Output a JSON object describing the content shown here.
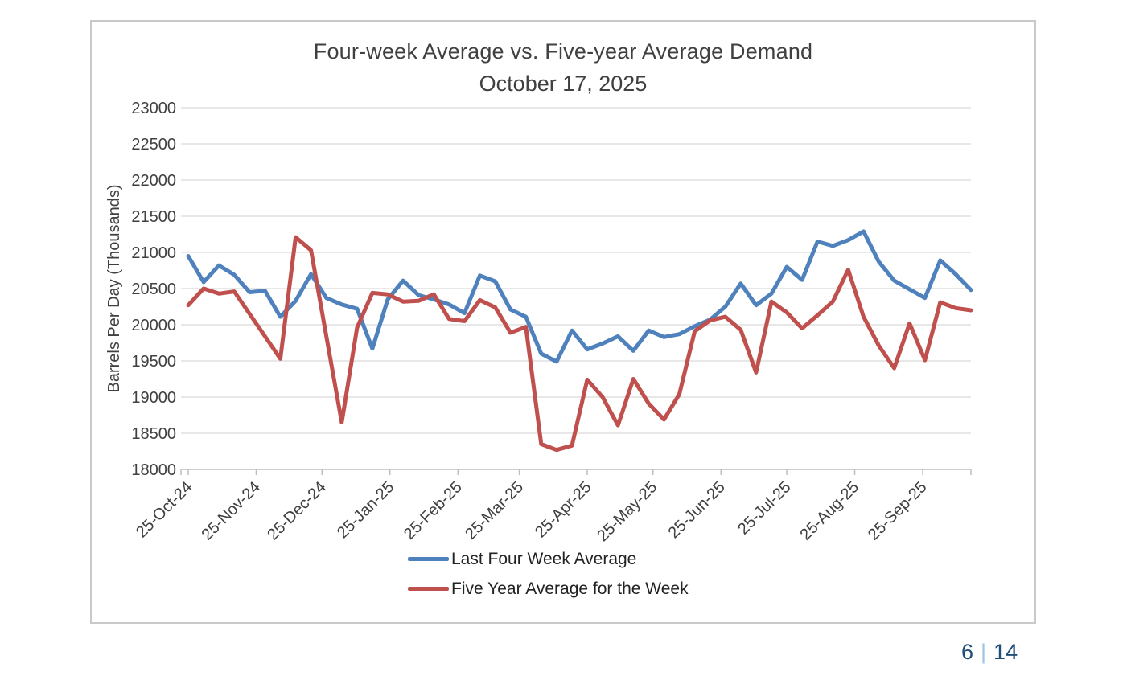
{
  "page": {
    "page_number_current": "6",
    "page_number_separator": "|",
    "page_number_total": "14"
  },
  "chart_data": {
    "type": "line",
    "title": "Four-week Average vs. Five-year Average Demand",
    "subtitle": "October 17, 2025",
    "ylabel": "Barrels Per Day (Thousands)",
    "xlabel": "",
    "ylim": [
      18000,
      23000
    ],
    "y_tick_step": 500,
    "y_tick_labels": [
      "23000",
      "22500",
      "22000",
      "21500",
      "21000",
      "20500",
      "20000",
      "19500",
      "19000",
      "18500",
      "18000"
    ],
    "grid": "horizontal",
    "legend_position": "bottom",
    "x_tick_labels": [
      "25-Oct-24",
      "25-Nov-24",
      "25-Dec-24",
      "25-Jan-25",
      "25-Feb-25",
      "25-Mar-25",
      "25-Apr-25",
      "25-May-25",
      "25-Jun-25",
      "25-Jul-25",
      "25-Aug-25",
      "25-Sep-25"
    ],
    "x_tick_day_offsets": [
      0,
      31,
      61,
      92,
      123,
      151,
      182,
      212,
      243,
      273,
      304,
      335
    ],
    "x_span_days": 357,
    "x": [
      "25-Oct-24",
      "1-Nov-24",
      "8-Nov-24",
      "15-Nov-24",
      "22-Nov-24",
      "29-Nov-24",
      "6-Dec-24",
      "13-Dec-24",
      "20-Dec-24",
      "27-Dec-24",
      "3-Jan-25",
      "10-Jan-25",
      "17-Jan-25",
      "24-Jan-25",
      "31-Jan-25",
      "7-Feb-25",
      "14-Feb-25",
      "21-Feb-25",
      "28-Feb-25",
      "7-Mar-25",
      "14-Mar-25",
      "21-Mar-25",
      "28-Mar-25",
      "4-Apr-25",
      "11-Apr-25",
      "18-Apr-25",
      "25-Apr-25",
      "2-May-25",
      "9-May-25",
      "16-May-25",
      "23-May-25",
      "30-May-25",
      "6-Jun-25",
      "13-Jun-25",
      "20-Jun-25",
      "27-Jun-25",
      "4-Jul-25",
      "11-Jul-25",
      "18-Jul-25",
      "25-Jul-25",
      "1-Aug-25",
      "8-Aug-25",
      "15-Aug-25",
      "22-Aug-25",
      "29-Aug-25",
      "5-Sep-25",
      "12-Sep-25",
      "19-Sep-25",
      "26-Sep-25",
      "3-Oct-25",
      "10-Oct-25",
      "17-Oct-25"
    ],
    "series": [
      {
        "name": "Last Four Week Average",
        "color": "#4F81BD",
        "values": [
          20950,
          20590,
          20820,
          20690,
          20450,
          20470,
          20110,
          20330,
          20700,
          20370,
          20280,
          20220,
          19670,
          20350,
          20610,
          20410,
          20350,
          20280,
          20160,
          20680,
          20600,
          20210,
          20110,
          19600,
          19490,
          19920,
          19660,
          19740,
          19840,
          19640,
          19920,
          19830,
          19870,
          19980,
          20070,
          20250,
          20570,
          20270,
          20430,
          20800,
          20620,
          21150,
          21090,
          21170,
          21290,
          20870,
          20610,
          20490,
          20370,
          20890,
          20700,
          20480
        ]
      },
      {
        "name": "Five Year Average for the Week",
        "color": "#C0504D",
        "values": [
          20270,
          20500,
          20430,
          20460,
          20150,
          19840,
          19530,
          21210,
          21030,
          19840,
          18650,
          19960,
          20440,
          20420,
          20320,
          20330,
          20420,
          20080,
          20050,
          20340,
          20240,
          19890,
          19970,
          18350,
          18270,
          18330,
          19240,
          19000,
          18610,
          19250,
          18910,
          18690,
          19040,
          19910,
          20060,
          20110,
          19930,
          19340,
          20320,
          20170,
          19950,
          20130,
          20320,
          20760,
          20110,
          19710,
          19400,
          20020,
          19510,
          20310,
          20230,
          20200
        ]
      }
    ],
    "colors": {
      "grid": "#d9d9d9",
      "axis": "#bfbfbf",
      "text": "#404040"
    }
  }
}
